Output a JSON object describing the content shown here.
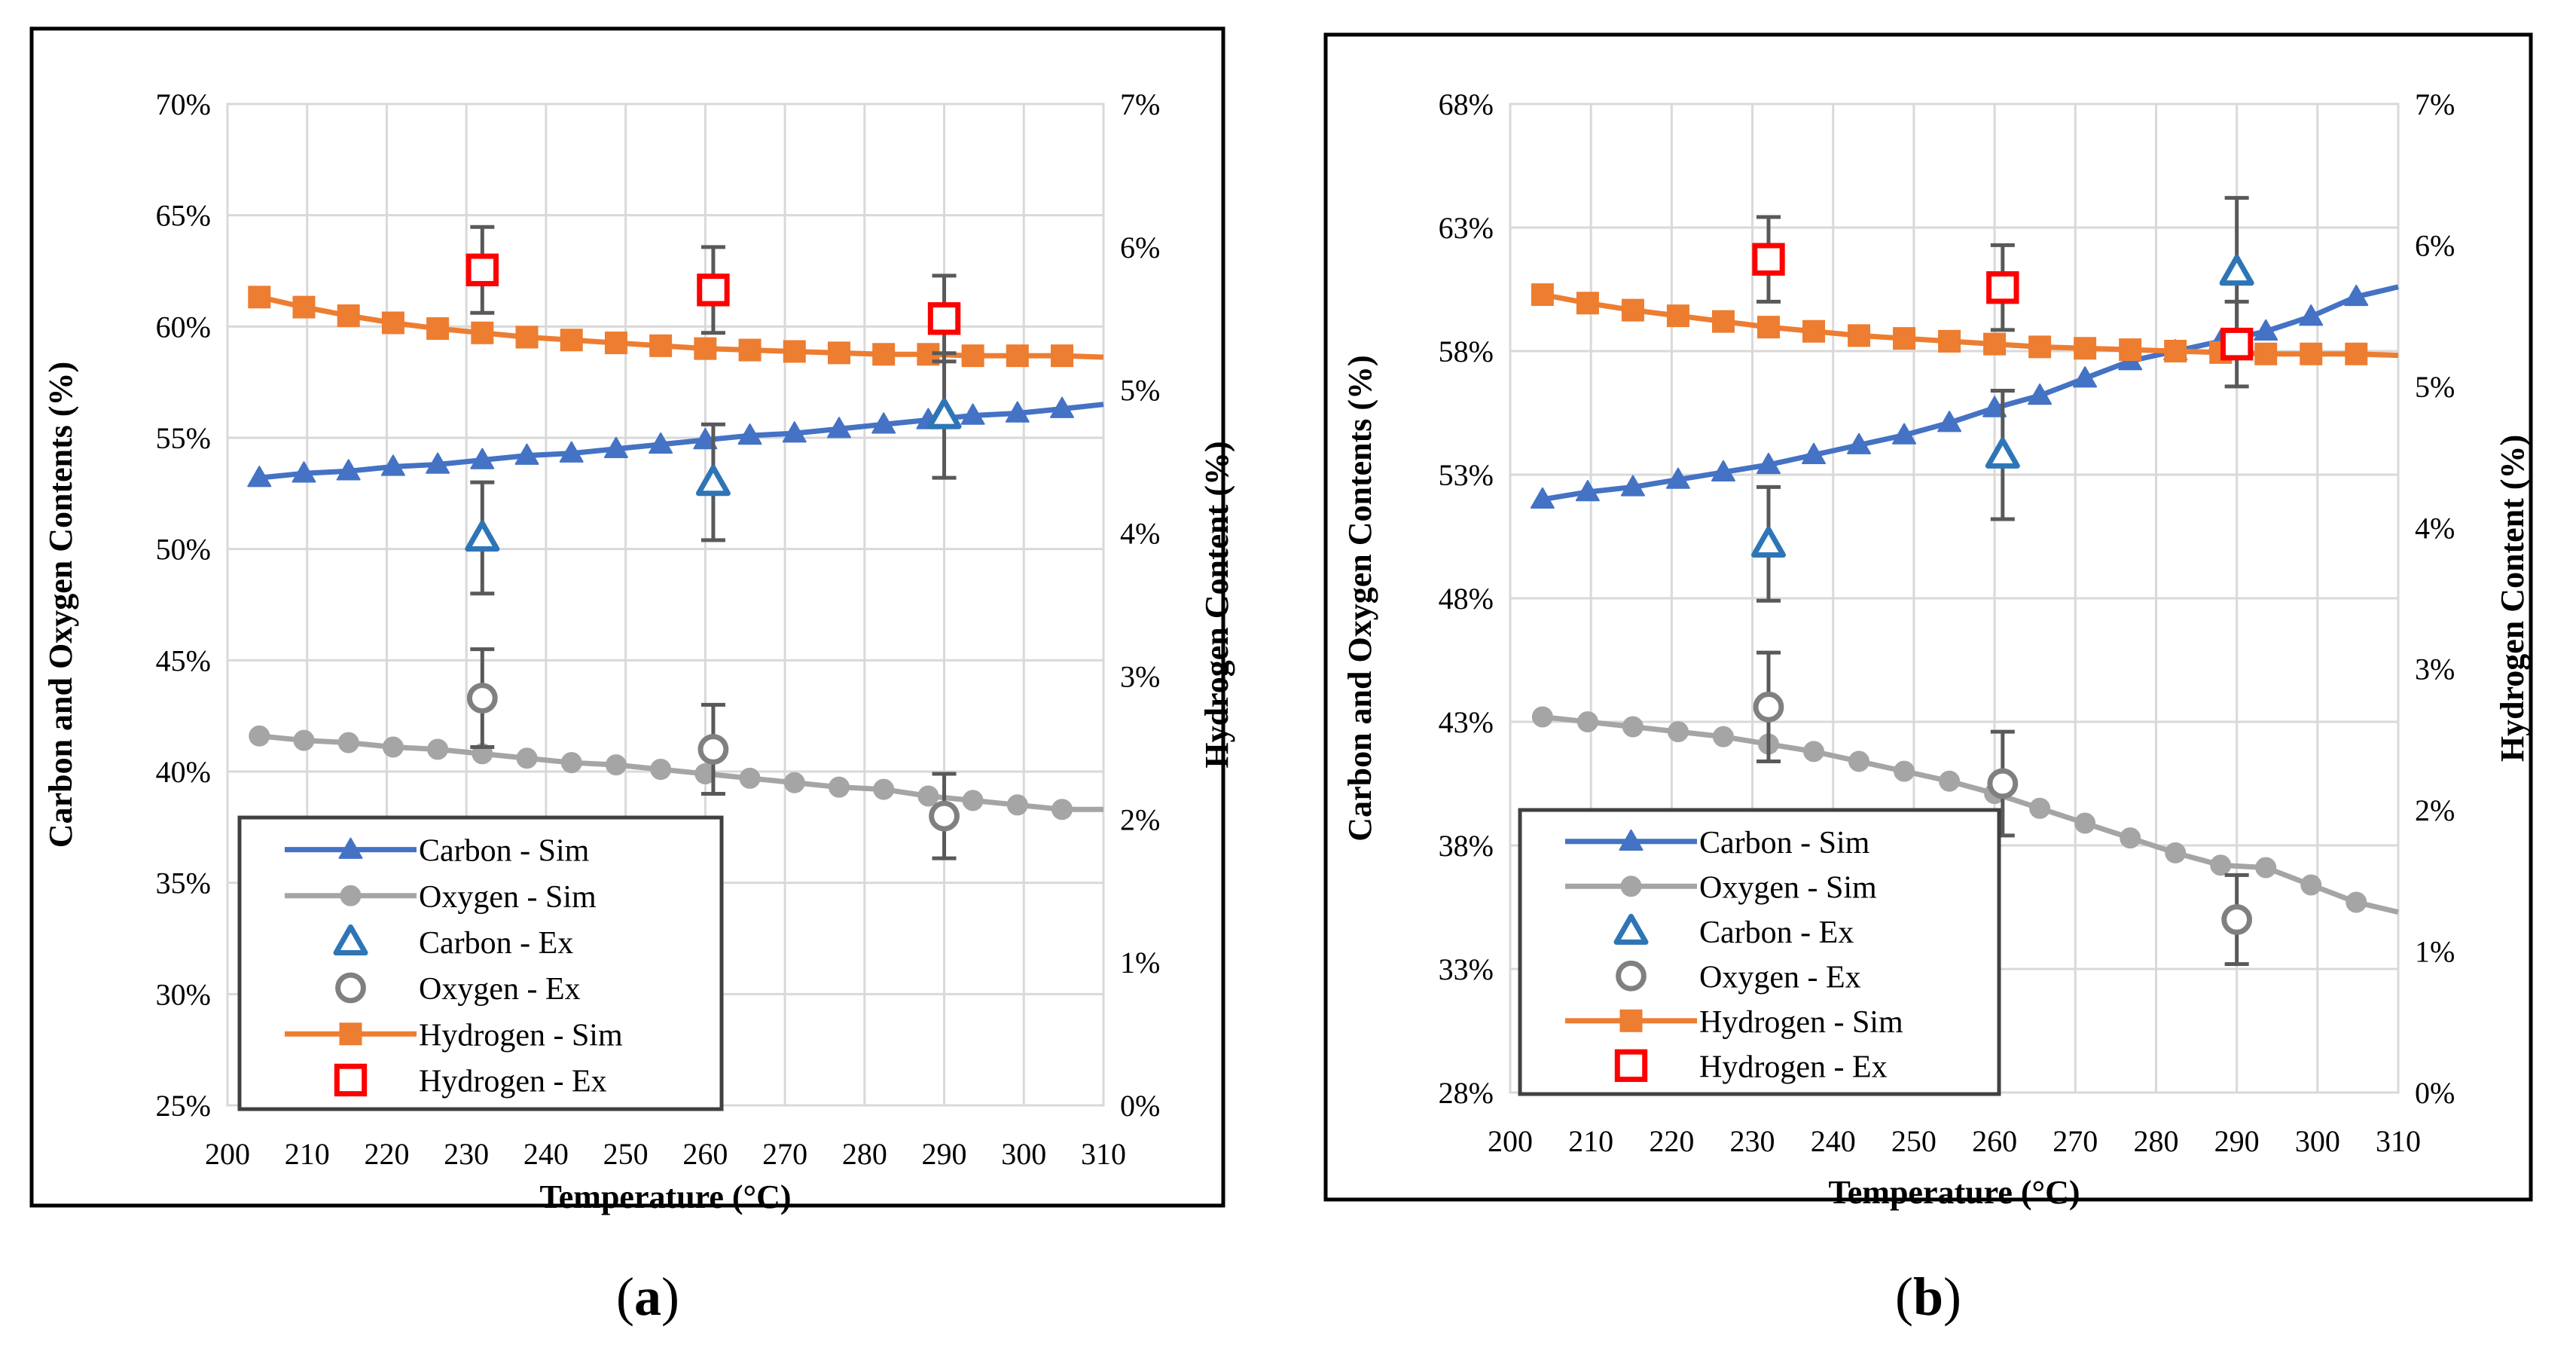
{
  "colors": {
    "carbon": "#4472C4",
    "carbon_ex": "#2E75B6",
    "oxygen": "#A5A5A5",
    "oxygen_ex": "#808080",
    "hydrogen": "#ED7D31",
    "hydrogen_ex": "#FF0000",
    "errorbar": "#595959",
    "grid": "#D9D9D9",
    "frame": "#000000"
  },
  "chart_data": [
    {
      "id": "a",
      "panel_label": "a",
      "type": "line",
      "xlabel": "Temperature (°C)",
      "ylabel": "Carbon and Oxygen Contents (%)",
      "y2label": "Hydrogen Content (%)",
      "xlim": [
        200,
        310
      ],
      "xticks": [
        200,
        210,
        220,
        230,
        240,
        250,
        260,
        270,
        280,
        290,
        300,
        310
      ],
      "ylim": [
        25,
        70
      ],
      "yticks": [
        25,
        30,
        35,
        40,
        45,
        50,
        55,
        60,
        65,
        70
      ],
      "ytick_labels": [
        "25%",
        "30%",
        "35%",
        "40%",
        "45%",
        "50%",
        "55%",
        "60%",
        "65%",
        "70%"
      ],
      "y2lim": [
        0,
        7
      ],
      "y2ticks": [
        0,
        1,
        2,
        3,
        4,
        5,
        6,
        7
      ],
      "y2tick_labels": [
        "0%",
        "1%",
        "2%",
        "3%",
        "4%",
        "5%",
        "6%",
        "7%"
      ],
      "sim_x": [
        204,
        209.6,
        215.2,
        220.8,
        226.4,
        232.0,
        237.6,
        243.2,
        248.8,
        254.4,
        260.0,
        265.6,
        271.2,
        276.8,
        282.4,
        288.0,
        293.6,
        299.2,
        304.8
      ],
      "series": [
        {
          "name": "Carbon - Sim",
          "kind": "sim",
          "marker": "triangle",
          "axis": "left",
          "line_to": 310,
          "line_end": 56.5,
          "values": [
            53.2,
            53.4,
            53.5,
            53.7,
            53.8,
            54.0,
            54.2,
            54.3,
            54.5,
            54.7,
            54.9,
            55.1,
            55.2,
            55.4,
            55.6,
            55.8,
            56.0,
            56.1,
            56.3
          ]
        },
        {
          "name": "Oxygen - Sim",
          "kind": "sim",
          "marker": "circle",
          "axis": "left",
          "line_to": 310,
          "line_end": 38.3,
          "values": [
            41.6,
            41.4,
            41.3,
            41.1,
            41.0,
            40.8,
            40.6,
            40.4,
            40.3,
            40.1,
            39.9,
            39.7,
            39.5,
            39.3,
            39.2,
            38.9,
            38.7,
            38.5,
            38.3
          ]
        },
        {
          "name": "Hydrogen - Sim",
          "kind": "sim",
          "marker": "square",
          "axis": "right",
          "line_to": 310,
          "line_end": 5.23,
          "values": [
            5.65,
            5.58,
            5.52,
            5.47,
            5.43,
            5.4,
            5.37,
            5.35,
            5.33,
            5.31,
            5.29,
            5.28,
            5.27,
            5.26,
            5.25,
            5.25,
            5.24,
            5.24,
            5.24
          ]
        },
        {
          "name": "Carbon - Ex",
          "kind": "ex",
          "marker": "triangle-open",
          "axis": "left",
          "x": [
            232,
            261,
            290
          ],
          "values": [
            50.5,
            53.0,
            56.0
          ],
          "err": [
            2.5,
            2.6,
            2.8
          ]
        },
        {
          "name": "Oxygen - Ex",
          "kind": "ex",
          "marker": "circle-open",
          "axis": "left",
          "x": [
            232,
            261,
            290
          ],
          "values": [
            43.3,
            41.0,
            38.0
          ],
          "err": [
            2.2,
            2.0,
            1.9
          ]
        },
        {
          "name": "Hydrogen - Ex",
          "kind": "ex",
          "marker": "square-open",
          "axis": "right",
          "x": [
            232,
            261,
            290
          ],
          "values": [
            5.84,
            5.7,
            5.5
          ],
          "err": [
            0.3,
            0.3,
            0.3
          ]
        }
      ],
      "legend": [
        {
          "label": "Carbon - Sim",
          "key": "carbon-sim"
        },
        {
          "label": "Oxygen - Sim",
          "key": "oxygen-sim"
        },
        {
          "label": "Carbon - Ex",
          "key": "carbon-ex"
        },
        {
          "label": "Oxygen - Ex",
          "key": "oxygen-ex"
        },
        {
          "label": "Hydrogen - Sim",
          "key": "hydrogen-sim"
        },
        {
          "label": "Hydrogen - Ex",
          "key": "hydrogen-ex"
        }
      ],
      "legend_position": "lower-left"
    },
    {
      "id": "b",
      "panel_label": "b",
      "type": "line",
      "xlabel": "Temperature (°C)",
      "ylabel": "Carbon and Oxygen Contents (%)",
      "y2label": "Hydrogen Content (%)",
      "xlim": [
        200,
        310
      ],
      "xticks": [
        200,
        210,
        220,
        230,
        240,
        250,
        260,
        270,
        280,
        290,
        300,
        310
      ],
      "ylim": [
        28,
        68
      ],
      "yticks": [
        28,
        33,
        38,
        43,
        48,
        53,
        58,
        63,
        68
      ],
      "ytick_labels": [
        "28%",
        "33%",
        "38%",
        "43%",
        "48%",
        "53%",
        "58%",
        "63%",
        "68%"
      ],
      "y2lim": [
        0,
        7
      ],
      "y2ticks": [
        0,
        1,
        2,
        3,
        4,
        5,
        6,
        7
      ],
      "y2tick_labels": [
        "0%",
        "1%",
        "2%",
        "3%",
        "4%",
        "5%",
        "6%",
        "7%"
      ],
      "sim_x": [
        204,
        209.6,
        215.2,
        220.8,
        226.4,
        232.0,
        237.6,
        243.2,
        248.8,
        254.4,
        260.0,
        265.6,
        271.2,
        276.8,
        282.4,
        288.0,
        293.6,
        299.2,
        304.8
      ],
      "series": [
        {
          "name": "Carbon - Sim",
          "kind": "sim",
          "marker": "triangle",
          "axis": "left",
          "line_to": 310,
          "line_end": 60.6,
          "values": [
            52.0,
            52.3,
            52.5,
            52.8,
            53.1,
            53.4,
            53.8,
            54.2,
            54.6,
            55.1,
            55.7,
            56.2,
            56.9,
            57.6,
            58.0,
            58.4,
            58.8,
            59.4,
            60.2
          ]
        },
        {
          "name": "Oxygen - Sim",
          "kind": "sim",
          "marker": "circle",
          "axis": "left",
          "line_to": 310,
          "line_end": 35.3,
          "values": [
            43.2,
            43.0,
            42.8,
            42.6,
            42.4,
            42.1,
            41.8,
            41.4,
            41.0,
            40.6,
            40.1,
            39.5,
            38.9,
            38.3,
            37.7,
            37.2,
            37.1,
            36.4,
            35.7
          ]
        },
        {
          "name": "Hydrogen - Sim",
          "kind": "sim",
          "marker": "square",
          "axis": "right",
          "line_to": 310,
          "line_end": 5.22,
          "values": [
            5.65,
            5.59,
            5.54,
            5.5,
            5.46,
            5.42,
            5.39,
            5.36,
            5.34,
            5.32,
            5.3,
            5.28,
            5.27,
            5.26,
            5.25,
            5.24,
            5.23,
            5.23,
            5.23
          ]
        },
        {
          "name": "Carbon - Ex",
          "kind": "ex",
          "marker": "triangle-open",
          "axis": "left",
          "x": [
            232,
            261,
            290
          ],
          "values": [
            50.2,
            53.8,
            61.2
          ],
          "err": [
            2.3,
            2.6,
            3.0
          ]
        },
        {
          "name": "Oxygen - Ex",
          "kind": "ex",
          "marker": "circle-open",
          "axis": "left",
          "x": [
            232,
            261,
            290
          ],
          "values": [
            43.6,
            40.5,
            35.0
          ],
          "err": [
            2.2,
            2.1,
            1.8
          ]
        },
        {
          "name": "Hydrogen - Ex",
          "kind": "ex",
          "marker": "square-open",
          "axis": "right",
          "x": [
            232,
            261,
            290
          ],
          "values": [
            5.9,
            5.7,
            5.3
          ],
          "err": [
            0.3,
            0.3,
            0.3
          ]
        }
      ],
      "legend": [
        {
          "label": "Carbon - Sim",
          "key": "carbon-sim"
        },
        {
          "label": "Oxygen - Sim",
          "key": "oxygen-sim"
        },
        {
          "label": "Carbon - Ex",
          "key": "carbon-ex"
        },
        {
          "label": "Oxygen - Ex",
          "key": "oxygen-ex"
        },
        {
          "label": "Hydrogen - Sim",
          "key": "hydrogen-sim"
        },
        {
          "label": "Hydrogen - Ex",
          "key": "hydrogen-ex"
        }
      ],
      "legend_position": "lower-left"
    }
  ]
}
